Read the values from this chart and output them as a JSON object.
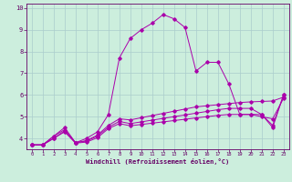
{
  "xlabel": "Windchill (Refroidissement éolien,°C)",
  "bg_color": "#cceedd",
  "grid_color": "#aacccc",
  "line_color": "#aa00aa",
  "xlim": [
    -0.5,
    23.5
  ],
  "ylim": [
    3.5,
    10.2
  ],
  "yticks": [
    4,
    5,
    6,
    7,
    8,
    9,
    10
  ],
  "xticks": [
    0,
    1,
    2,
    3,
    4,
    5,
    6,
    7,
    8,
    9,
    10,
    11,
    12,
    13,
    14,
    15,
    16,
    17,
    18,
    19,
    20,
    21,
    22,
    23
  ],
  "x": [
    0,
    1,
    2,
    3,
    4,
    5,
    6,
    7,
    8,
    9,
    10,
    11,
    12,
    13,
    14,
    15,
    16,
    17,
    18,
    19,
    20,
    21,
    22,
    23
  ],
  "lines": [
    [
      3.7,
      3.7,
      4.1,
      4.5,
      3.8,
      4.0,
      4.3,
      5.1,
      7.7,
      8.6,
      9.0,
      9.3,
      9.7,
      9.5,
      9.1,
      7.1,
      7.5,
      7.5,
      6.5,
      5.1,
      5.1,
      5.1,
      4.5,
      6.0
    ],
    [
      3.7,
      3.7,
      4.1,
      4.4,
      3.8,
      3.9,
      4.15,
      4.6,
      4.9,
      4.85,
      4.95,
      5.05,
      5.15,
      5.25,
      5.35,
      5.45,
      5.5,
      5.55,
      5.6,
      5.65,
      5.68,
      5.7,
      5.72,
      5.9
    ],
    [
      3.7,
      3.7,
      4.0,
      4.35,
      3.8,
      3.88,
      4.1,
      4.52,
      4.78,
      4.68,
      4.76,
      4.84,
      4.92,
      5.0,
      5.08,
      5.16,
      5.24,
      5.32,
      5.38,
      5.38,
      5.38,
      5.1,
      4.6,
      6.0
    ],
    [
      3.7,
      3.7,
      4.0,
      4.3,
      3.78,
      3.83,
      4.03,
      4.45,
      4.68,
      4.58,
      4.64,
      4.7,
      4.76,
      4.82,
      4.88,
      4.94,
      5.0,
      5.06,
      5.1,
      5.1,
      5.1,
      5.0,
      4.9,
      5.85
    ]
  ]
}
